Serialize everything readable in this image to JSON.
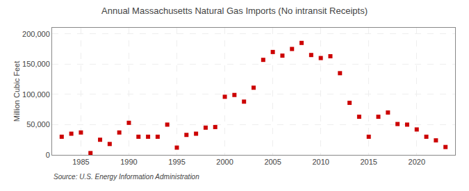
{
  "chart_data": {
    "type": "scatter",
    "title": "Annual Massachusetts Natural Gas Imports (No intransit Receipts)",
    "ylabel": "Million Cubic Feet",
    "source": "Source: U.S. Energy Information Administration",
    "color": "#cc0000",
    "marker": "square",
    "grid": true,
    "xlim": [
      1982,
      2024
    ],
    "ylim": [
      0,
      210000
    ],
    "xticks": [
      1985,
      1990,
      1995,
      2000,
      2005,
      2010,
      2015,
      2020
    ],
    "yticks": [
      0,
      {
        "value": 50000,
        "label": "50,000"
      },
      {
        "value": 100000,
        "label": "100,000"
      },
      {
        "value": 150000,
        "label": "150,000"
      },
      {
        "value": 200000,
        "label": "200,000"
      }
    ],
    "x": [
      1983,
      1984,
      1985,
      1986,
      1987,
      1988,
      1989,
      1990,
      1991,
      1992,
      1993,
      1994,
      1995,
      1996,
      1997,
      1998,
      1999,
      2000,
      2001,
      2002,
      2003,
      2004,
      2005,
      2006,
      2007,
      2008,
      2009,
      2010,
      2011,
      2012,
      2013,
      2014,
      2015,
      2016,
      2017,
      2018,
      2019,
      2020,
      2021,
      2022,
      2023
    ],
    "values": [
      30000,
      35000,
      37000,
      3000,
      25000,
      18000,
      37000,
      53000,
      30000,
      30000,
      30000,
      50000,
      12000,
      33000,
      35000,
      45000,
      46000,
      96000,
      99000,
      88000,
      111000,
      157000,
      170000,
      164000,
      175000,
      185000,
      165000,
      160000,
      163000,
      135000,
      86000,
      63000,
      30000,
      63000,
      70000,
      51000,
      50000,
      42000,
      30000,
      24000,
      13000
    ]
  }
}
